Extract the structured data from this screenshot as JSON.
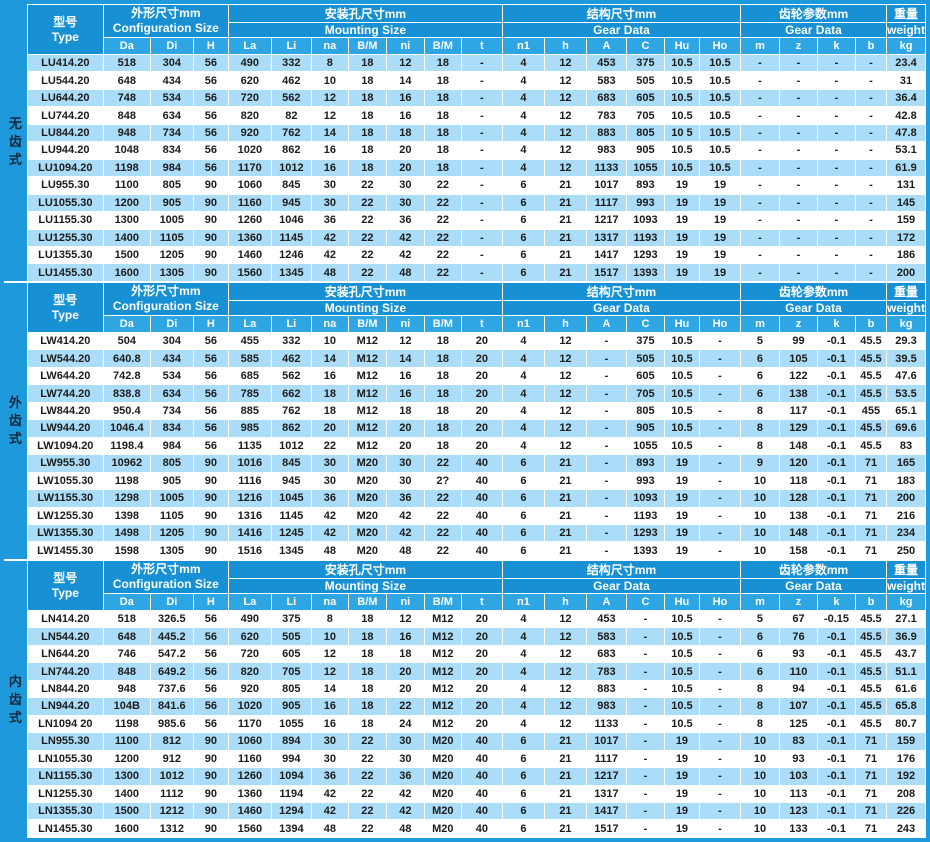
{
  "colors": {
    "frame_blue": "#1e9adc",
    "header_blue": "#1791d3",
    "subheader_blue": "#2ea6e3",
    "stripe_blue": "#abddf8",
    "row_white": "#ffffff",
    "grid_white": "#ffffff",
    "data_text": "#1c1c1c",
    "header_text": "#ffffff",
    "side_text": "#14293c"
  },
  "header": {
    "type_cn": "型号",
    "type_en": "Type",
    "groups": [
      {
        "cn": "外形尺寸mm",
        "en": "Configuration Size",
        "span": 3,
        "merged": true
      },
      {
        "cn": "安装孔尺寸mm",
        "en": "Mounting Size",
        "span": 7,
        "merged": false
      },
      {
        "cn": "结构尺寸mm",
        "en": "Gear Data",
        "span": 6,
        "merged": false
      },
      {
        "cn": "齿轮参数mm",
        "en": "Gear Data",
        "span": 4,
        "merged": false
      },
      {
        "cn": "重量",
        "en": "weight",
        "span": 1,
        "merged": false
      }
    ],
    "columns": [
      "Da",
      "Di",
      "H",
      "La",
      "Li",
      "na",
      "B/M",
      "ni",
      "B/M",
      "t",
      "n1",
      "h",
      "A",
      "C",
      "Hu",
      "Ho",
      "m",
      "z",
      "k",
      "b",
      "kg"
    ]
  },
  "sections": [
    {
      "side_label": "无齿式",
      "first_row_shaded": true,
      "rows": [
        [
          "LU414.20",
          "518",
          "304",
          "56",
          "490",
          "332",
          "8",
          "18",
          "12",
          "18",
          "-",
          "4",
          "12",
          "453",
          "375",
          "10.5",
          "10.5",
          "-",
          "-",
          "-",
          "-",
          "23.4"
        ],
        [
          "LU544.20",
          "648",
          "434",
          "56",
          "620",
          "462",
          "10",
          "18",
          "14",
          "18",
          "-",
          "4",
          "12",
          "583",
          "505",
          "10.5",
          "10.5",
          "-",
          "-",
          "-",
          "-",
          "31"
        ],
        [
          "LU644.20",
          "748",
          "534",
          "56",
          "720",
          "562",
          "12",
          "18",
          "16",
          "18",
          "-",
          "4",
          "12",
          "683",
          "605",
          "10.5",
          "10.5",
          "-",
          "-",
          "-",
          "-",
          "36.4"
        ],
        [
          "LU744.20",
          "848",
          "634",
          "56",
          "820",
          "82",
          "12",
          "18",
          "16",
          "18",
          "-",
          "4",
          "12",
          "783",
          "705",
          "10.5",
          "10.5",
          "-",
          "-",
          "-",
          "-",
          "42.8"
        ],
        [
          "LU844.20",
          "948",
          "734",
          "56",
          "920",
          "762",
          "14",
          "18",
          "18",
          "18",
          "-",
          "4",
          "12",
          "883",
          "805",
          "10 5",
          "10.5",
          "-",
          "-",
          "-",
          "-",
          "47.8"
        ],
        [
          "LU944.20",
          "1048",
          "834",
          "56",
          "1020",
          "862",
          "16",
          "18",
          "20",
          "18",
          "-",
          "4",
          "12",
          "983",
          "905",
          "10.5",
          "10.5",
          "-",
          "-",
          "-",
          "-",
          "53.1"
        ],
        [
          "LU1094.20",
          "1198",
          "984",
          "56",
          "1170",
          "1012",
          "16",
          "18",
          "20",
          "18",
          "-",
          "4",
          "12",
          "1133",
          "1055",
          "10.5",
          "10.5",
          "-",
          "-",
          "-",
          "-",
          "61.9"
        ],
        [
          "LU955.30",
          "1100",
          "805",
          "90",
          "1060",
          "845",
          "30",
          "22",
          "30",
          "22",
          "-",
          "6",
          "21",
          "1017",
          "893",
          "19",
          "19",
          "-",
          "-",
          "-",
          "-",
          "131"
        ],
        [
          "LU1055.30",
          "1200",
          "905",
          "90",
          "1160",
          "945",
          "30",
          "22",
          "30",
          "22",
          "-",
          "6",
          "21",
          "1117",
          "993",
          "19",
          "19",
          "-",
          "-",
          "-",
          "-",
          "145"
        ],
        [
          "LU1155.30",
          "1300",
          "1005",
          "90",
          "1260",
          "1046",
          "36",
          "22",
          "36",
          "22",
          "-",
          "6",
          "21",
          "1217",
          "1093",
          "19",
          "19",
          "-",
          "-",
          "-",
          "-",
          "159"
        ],
        [
          "LU1255.30",
          "1400",
          "1105",
          "90",
          "1360",
          "1145",
          "42",
          "22",
          "42",
          "22",
          "-",
          "6",
          "21",
          "1317",
          "1193",
          "19",
          "19",
          "-",
          "-",
          "-",
          "-",
          "172"
        ],
        [
          "LU1355.30",
          "1500",
          "1205",
          "90",
          "1460",
          "1246",
          "42",
          "22",
          "42",
          "22",
          "-",
          "6",
          "21",
          "1417",
          "1293",
          "19",
          "19",
          "-",
          "-",
          "-",
          "-",
          "186"
        ],
        [
          "LU1455.30",
          "1600",
          "1305",
          "90",
          "1560",
          "1345",
          "48",
          "22",
          "48",
          "22",
          "-",
          "6",
          "21",
          "1517",
          "1393",
          "19",
          "19",
          "-",
          "-",
          "-",
          "-",
          "200"
        ]
      ]
    },
    {
      "side_label": "外齿式",
      "first_row_shaded": false,
      "rows": [
        [
          "LW414.20",
          "504",
          "304",
          "56",
          "455",
          "332",
          "10",
          "M12",
          "12",
          "18",
          "20",
          "4",
          "12",
          "-",
          "375",
          "10.5",
          "-",
          "5",
          "99",
          "-0.1",
          "45.5",
          "29.3"
        ],
        [
          "LW544.20",
          "640.8",
          "434",
          "56",
          "585",
          "462",
          "14",
          "M12",
          "14",
          "18",
          "20",
          "4",
          "12",
          "-",
          "505",
          "10.5",
          "-",
          "6",
          "105",
          "-0.1",
          "45.5",
          "39.5"
        ],
        [
          "LW644.20",
          "742.8",
          "534",
          "56",
          "685",
          "562",
          "16",
          "M12",
          "16",
          "18",
          "20",
          "4",
          "12",
          "-",
          "605",
          "10.5",
          "-",
          "6",
          "122",
          "-0.1",
          "45.5",
          "47.6"
        ],
        [
          "LW744.20",
          "838.8",
          "634",
          "56",
          "785",
          "662",
          "18",
          "M12",
          "16",
          "18",
          "20",
          "4",
          "12",
          "-",
          "705",
          "10.5",
          "-",
          "6",
          "138",
          "-0.1",
          "45.5",
          "53.5"
        ],
        [
          "LW844.20",
          "950.4",
          "734",
          "56",
          "885",
          "762",
          "18",
          "M12",
          "18",
          "18",
          "20",
          "4",
          "12",
          "-",
          "805",
          "10.5",
          "-",
          "8",
          "117",
          "-0.1",
          "455",
          "65.1"
        ],
        [
          "LW944.20",
          "1046.4",
          "834",
          "56",
          "985",
          "862",
          "20",
          "M12",
          "20",
          "18",
          "20",
          "4",
          "12",
          "-",
          "905",
          "10.5",
          "-",
          "8",
          "129",
          "-0.1",
          "45.5",
          "69.6"
        ],
        [
          "LW1094.20",
          "1198.4",
          "984",
          "56",
          "1135",
          "1012",
          "22",
          "M12",
          "20",
          "18",
          "20",
          "4",
          "12",
          "-",
          "1055",
          "10.5",
          "-",
          "8",
          "148",
          "-0.1",
          "45.5",
          "83"
        ],
        [
          "LW955.30",
          "10962",
          "805",
          "90",
          "1016",
          "845",
          "30",
          "M20",
          "30",
          "22",
          "40",
          "6",
          "21",
          "-",
          "893",
          "19",
          "-",
          "9",
          "120",
          "-0.1",
          "71",
          "165"
        ],
        [
          "LW1055.30",
          "1198",
          "905",
          "90",
          "1116",
          "945",
          "30",
          "M20",
          "30",
          "2?",
          "40",
          "6",
          "21",
          "-",
          "993",
          "19",
          "-",
          "10",
          "118",
          "-0.1",
          "71",
          "183"
        ],
        [
          "LW1155.30",
          "1298",
          "1005",
          "90",
          "1216",
          "1045",
          "36",
          "M20",
          "36",
          "22",
          "40",
          "6",
          "21",
          "-",
          "1093",
          "19",
          "-",
          "10",
          "128",
          "-0.1",
          "71",
          "200"
        ],
        [
          "LW1255.30",
          "1398",
          "1105",
          "90",
          "1316",
          "1145",
          "42",
          "M20",
          "42",
          "22",
          "40",
          "6",
          "21",
          "-",
          "1193",
          "19",
          "-",
          "10",
          "138",
          "-0.1",
          "71",
          "216"
        ],
        [
          "LW1355.30",
          "1498",
          "1205",
          "90",
          "1416",
          "1245",
          "42",
          "M20",
          "42",
          "22",
          "40",
          "6",
          "21",
          "-",
          "1293",
          "19",
          "-",
          "10",
          "148",
          "-0.1",
          "71",
          "234"
        ],
        [
          "LW1455.30",
          "1598",
          "1305",
          "90",
          "1516",
          "1345",
          "48",
          "M20",
          "48",
          "22",
          "40",
          "6",
          "21",
          "-",
          "1393",
          "19",
          "-",
          "10",
          "158",
          "-0.1",
          "71",
          "250"
        ]
      ]
    },
    {
      "side_label": "内齿式",
      "first_row_shaded": false,
      "rows": [
        [
          "LN414.20",
          "518",
          "326.5",
          "56",
          "490",
          "375",
          "8",
          "18",
          "12",
          "M12",
          "20",
          "4",
          "12",
          "453",
          "-",
          "10.5",
          "-",
          "5",
          "67",
          "-0.15",
          "45.5",
          "27.1"
        ],
        [
          "LN544.20",
          "648",
          "445.2",
          "56",
          "620",
          "505",
          "10",
          "18",
          "16",
          "M12",
          "20",
          "4",
          "12",
          "583",
          "-",
          "10.5",
          "-",
          "6",
          "76",
          "-0.1",
          "45.5",
          "36.9"
        ],
        [
          "LN644.20",
          "746",
          "547.2",
          "56",
          "720",
          "605",
          "12",
          "18",
          "18",
          "M12",
          "20",
          "4",
          "12",
          "683",
          "-",
          "10.5",
          "-",
          "6",
          "93",
          "-0.1",
          "45.5",
          "43.7"
        ],
        [
          "LN744.20",
          "848",
          "649.2",
          "56",
          "820",
          "705",
          "12",
          "18",
          "20",
          "M12",
          "20",
          "4",
          "12",
          "783",
          "-",
          "10.5",
          "-",
          "6",
          "110",
          "-0.1",
          "45.5",
          "51.1"
        ],
        [
          "LN844.20",
          "948",
          "737.6",
          "56",
          "920",
          "805",
          "14",
          "18",
          "20",
          "M12",
          "20",
          "4",
          "12",
          "883",
          "-",
          "10.5",
          "-",
          "8",
          "94",
          "-0.1",
          "45.5",
          "61.6"
        ],
        [
          "LN944.20",
          "104B",
          "841.6",
          "56",
          "1020",
          "905",
          "16",
          "18",
          "22",
          "M12",
          "20",
          "4",
          "12",
          "983",
          "-",
          "10.5",
          "-",
          "8",
          "107",
          "-0.1",
          "45.5",
          "65.8"
        ],
        [
          "LN1094 20",
          "1198",
          "985.6",
          "56",
          "1170",
          "1055",
          "16",
          "18",
          "24",
          "M12",
          "20",
          "4",
          "12",
          "1133",
          "-",
          "10.5",
          "-",
          "8",
          "125",
          "-0.1",
          "45.5",
          "80.7"
        ],
        [
          "LN955.30",
          "1100",
          "812",
          "90",
          "1060",
          "894",
          "30",
          "22",
          "30",
          "M20",
          "40",
          "6",
          "21",
          "1017",
          "-",
          "19",
          "-",
          "10",
          "83",
          "-0.1",
          "71",
          "159"
        ],
        [
          "LN1055.30",
          "1200",
          "912",
          "90",
          "1160",
          "994",
          "30",
          "22",
          "30",
          "M20",
          "40",
          "6",
          "21",
          "1117",
          "-",
          "19",
          "-",
          "10",
          "93",
          "-0.1",
          "71",
          "176"
        ],
        [
          "LN1155.30",
          "1300",
          "1012",
          "90",
          "1260",
          "1094",
          "36",
          "22",
          "36",
          "M20",
          "40",
          "6",
          "21",
          "1217",
          "-",
          "19",
          "-",
          "10",
          "103",
          "-0.1",
          "71",
          "192"
        ],
        [
          "LN1255.30",
          "1400",
          "1112",
          "90",
          "1360",
          "1194",
          "42",
          "22",
          "42",
          "M20",
          "40",
          "6",
          "21",
          "1317",
          "-",
          "19",
          "-",
          "10",
          "113",
          "-0.1",
          "71",
          "208"
        ],
        [
          "LN1355.30",
          "1500",
          "1212",
          "90",
          "1460",
          "1294",
          "42",
          "22",
          "42",
          "M20",
          "40",
          "6",
          "21",
          "1417",
          "-",
          "19",
          "-",
          "10",
          "123",
          "-0.1",
          "71",
          "226"
        ],
        [
          "LN1455.30",
          "1600",
          "1312",
          "90",
          "1560",
          "1394",
          "48",
          "22",
          "48",
          "M20",
          "40",
          "6",
          "21",
          "1517",
          "-",
          "19",
          "-",
          "10",
          "133",
          "-0.1",
          "71",
          "243"
        ]
      ]
    }
  ]
}
